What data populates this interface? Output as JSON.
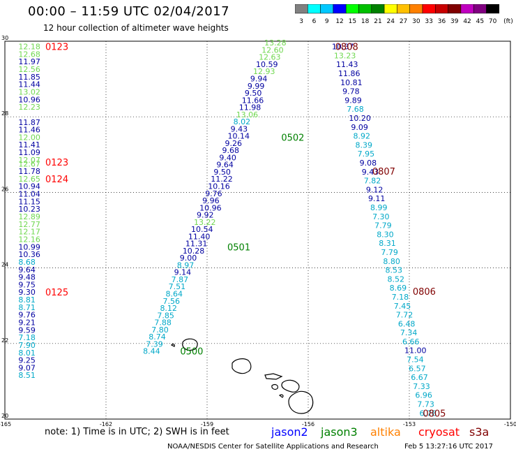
{
  "title": "00:00 – 11:59 UTC 02/04/2017",
  "subtitle": "12 hour collection of altimeter wave heights",
  "colorbar": {
    "labels": [
      "3",
      "6",
      "9",
      "12",
      "15",
      "18",
      "21",
      "24",
      "27",
      "30",
      "33",
      "36",
      "39",
      "42",
      "45",
      "70",
      "(ft)"
    ],
    "colors": [
      "#808080",
      "#00ffff",
      "#00c8ff",
      "#0000ff",
      "#00ff00",
      "#00c000",
      "#008000",
      "#ffff00",
      "#ffc000",
      "#ff8000",
      "#ff0000",
      "#c80000",
      "#800000",
      "#c000c0",
      "#800080",
      "#000000"
    ]
  },
  "note": "note: 1) Time is in UTC; 2) SWH is in feet",
  "legend": [
    {
      "name": "jason2",
      "color": "#0000ff"
    },
    {
      "name": "jason3",
      "color": "#008000"
    },
    {
      "name": "altika",
      "color": "#ff8000"
    },
    {
      "name": "cryosat",
      "color": "#ff0000"
    },
    {
      "name": "s3a",
      "color": "#800000"
    }
  ],
  "credit": "NOAA/NESDIS Center for Satellite Applications and Research",
  "timestamp": "Feb  5 13:27:16 UTC 2017",
  "chart_data": {
    "type": "scatter",
    "xlim": [
      -165,
      -150
    ],
    "ylim": [
      20,
      30
    ],
    "x_ticks": [
      "-165",
      "-162",
      "-159",
      "-156",
      "-153",
      "-150"
    ],
    "y_ticks": [
      "20",
      "22",
      "24",
      "26",
      "28",
      "30"
    ],
    "grid": true,
    "colors": {
      "t9": "#00a8c8",
      "t12": "#0000a0",
      "t15": "#70d850"
    },
    "tracks": [
      {
        "x": -164.6,
        "values": [
          "12.18",
          "12.68",
          "11.97",
          "12.56",
          "11.85",
          "11.44",
          "13.02",
          "10.96",
          "12.23"
        ],
        "y": [
          29.86,
          29.66,
          29.46,
          29.26,
          29.06,
          28.86,
          28.66,
          28.46,
          28.26
        ]
      },
      {
        "x": -164.6,
        "values": [
          "11.87",
          "11.46",
          "12.00",
          "11.41",
          "11.09",
          "12.07",
          "12.67",
          "11.78",
          "12.65",
          "10.94",
          "11.04",
          "11.15",
          "10.23",
          "12.89",
          "12.77",
          "12.17",
          "12.16",
          "10.99",
          "10.36",
          "8.68",
          "9.64",
          "9.48",
          "9.75",
          "9.30",
          "8.81",
          "8.71",
          "9.76",
          "9.21",
          "9.59",
          "7.18",
          "7.90",
          "8.01",
          "9.25",
          "9.07",
          "8.51"
        ],
        "y": [
          27.86,
          27.66,
          27.46,
          27.26,
          27.06,
          26.86,
          26.76,
          26.56,
          26.36,
          26.16,
          25.96,
          25.76,
          25.56,
          25.36,
          25.16,
          24.96,
          24.76,
          24.56,
          24.36,
          24.16,
          23.96,
          23.76,
          23.56,
          23.36,
          23.16,
          22.96,
          22.76,
          22.56,
          22.36,
          22.16,
          21.96,
          21.76,
          21.56,
          21.36,
          21.16
        ]
      },
      {
        "x0": -160.9,
        "x1": -157.3,
        "values": [
          "8.44",
          "7.39",
          "8.74",
          "7.80",
          "7.88",
          "7.85",
          "8.12",
          "7.56",
          "8.64",
          "7.51",
          "7.87",
          "9.14",
          "8.97",
          "9.00",
          "10.28",
          "11.31",
          "11.40",
          "10.54",
          "13.22",
          "9.92",
          "10.96",
          "9.96",
          "9.76",
          "10.16",
          "11.22",
          "9.50",
          "9.64",
          "9.40",
          "9.68",
          "9.26",
          "10.14",
          "9.43",
          "8.02",
          "13.06",
          "11.98",
          "11.66",
          "9.50",
          "9.99",
          "9.94",
          "12.93",
          "10.59",
          "12.63",
          "12.60",
          "13.28"
        ],
        "y0": 21.8,
        "y1": 29.96
      },
      {
        "x0": -155.3,
        "x1": -152.7,
        "values": [
          "10.37",
          "13.23",
          "11.43",
          "11.86",
          "10.81",
          "9.78",
          "9.89",
          "7.68",
          "10.20",
          "9.09",
          "8.92",
          "8.39",
          "7.95",
          "9.08",
          "9.43",
          "7.82",
          "9.12",
          "9.11",
          "8.99",
          "7.30",
          "7.79",
          "8.30",
          "8.31",
          "7.79",
          "8.80",
          "8.53",
          "8.52",
          "8.69",
          "7.18",
          "7.45",
          "7.72",
          "6.48",
          "7.34",
          "6.66",
          "11.00",
          "7.54",
          "6.57",
          "6.67",
          "7.33",
          "6.96",
          "7.73",
          "6.78"
        ],
        "y0": 29.86,
        "y1": 20.16
      }
    ],
    "labels": [
      {
        "text": "0123",
        "x": -163.8,
        "y": 29.86,
        "color": "#ff0000"
      },
      {
        "text": "0123",
        "x": -163.8,
        "y": 26.8,
        "color": "#ff0000"
      },
      {
        "text": "0124",
        "x": -163.8,
        "y": 26.36,
        "color": "#ff0000"
      },
      {
        "text": "0125",
        "x": -163.8,
        "y": 23.36,
        "color": "#ff0000"
      },
      {
        "text": "0500",
        "x": -159.8,
        "y": 21.8,
        "color": "#008000"
      },
      {
        "text": "0501",
        "x": -158.4,
        "y": 24.56,
        "color": "#008000"
      },
      {
        "text": "0502",
        "x": -156.8,
        "y": 27.46,
        "color": "#008000"
      },
      {
        "text": "0808",
        "x": -155.2,
        "y": 29.86,
        "color": "#800000"
      },
      {
        "text": "0807",
        "x": -154.1,
        "y": 26.56,
        "color": "#800000"
      },
      {
        "text": "0806",
        "x": -152.9,
        "y": 23.38,
        "color": "#800000"
      },
      {
        "text": "0805",
        "x": -152.6,
        "y": 20.16,
        "color": "#800000"
      }
    ]
  }
}
